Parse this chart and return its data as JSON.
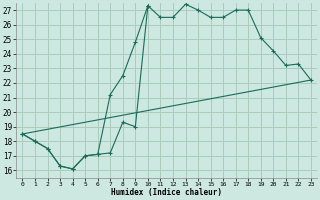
{
  "title": "",
  "xlabel": "Humidex (Indice chaleur)",
  "bg_color": "#cce8e0",
  "grid_color": "#aaccbb",
  "line_color": "#1a6b58",
  "xlim": [
    -0.5,
    23.5
  ],
  "ylim": [
    15.5,
    27.5
  ],
  "xticks": [
    0,
    1,
    2,
    3,
    4,
    5,
    6,
    7,
    8,
    9,
    10,
    11,
    12,
    13,
    14,
    15,
    16,
    17,
    18,
    19,
    20,
    21,
    22,
    23
  ],
  "yticks": [
    16,
    17,
    18,
    19,
    20,
    21,
    22,
    23,
    24,
    25,
    26,
    27
  ],
  "line1_x": [
    0,
    1,
    2,
    3,
    4,
    5,
    6,
    7,
    8,
    9,
    10,
    11,
    12,
    13,
    14,
    15,
    16,
    17,
    18,
    19,
    20,
    21,
    22,
    23
  ],
  "line1_y": [
    18.5,
    18.0,
    17.5,
    16.3,
    16.1,
    17.0,
    17.1,
    17.2,
    19.3,
    19.0,
    27.3,
    26.5,
    26.5,
    27.4,
    27.0,
    26.5,
    26.5,
    27.0,
    27.0,
    25.1,
    24.2,
    23.2,
    23.3,
    22.2
  ],
  "line2_x": [
    0,
    1,
    2,
    3,
    4,
    5,
    6,
    7,
    8,
    9,
    10
  ],
  "line2_y": [
    18.5,
    18.0,
    17.5,
    16.3,
    16.1,
    17.0,
    17.1,
    21.2,
    22.5,
    24.8,
    27.3
  ],
  "line3_x": [
    0,
    23
  ],
  "line3_y": [
    18.5,
    22.2
  ]
}
